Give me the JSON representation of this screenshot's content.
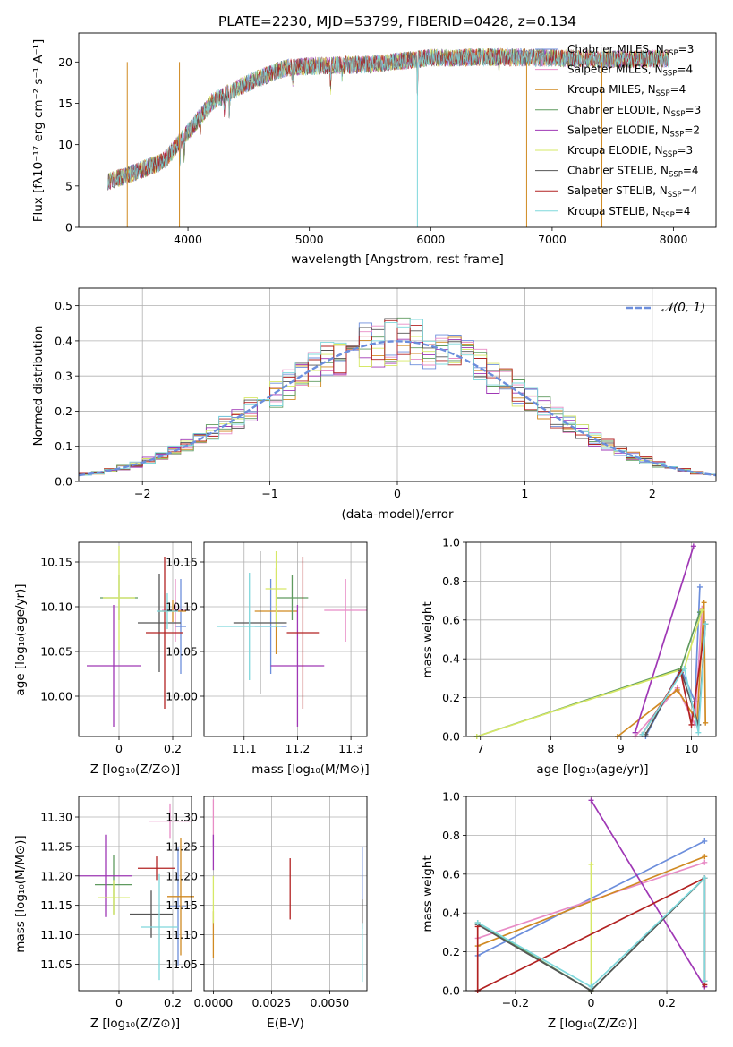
{
  "chart_data": [
    {
      "id": "spectrum",
      "type": "line",
      "title": "PLATE=2230, MJD=53799, FIBERID=0428, z=0.134",
      "xlabel": "wavelength [Angstrom, rest frame]",
      "ylabel": "Flux [fλ10⁻¹⁷ erg cm⁻² s⁻¹ A⁻¹]",
      "xlim": [
        3100,
        8350
      ],
      "ylim": [
        0,
        23.5
      ],
      "xticks": [
        4000,
        5000,
        6000,
        7000,
        8000
      ],
      "yticks": [
        0,
        5,
        10,
        15,
        20
      ],
      "x_range_data": [
        3340,
        7960
      ],
      "continuum": {
        "x": [
          3340,
          3500,
          3800,
          4000,
          4200,
          4500,
          4800,
          5000,
          5500,
          6000,
          6500,
          7000,
          7500,
          7960
        ],
        "y": [
          5.6,
          6.3,
          8.0,
          11.5,
          15.2,
          17.5,
          19.3,
          19.5,
          19.7,
          20.5,
          20.6,
          20.5,
          20.3,
          20.4
        ]
      },
      "legend_position": "right",
      "legend": [
        {
          "name": "Chabrier MILES, N",
          "sub": "SSP",
          "tail": "=3",
          "color": "#6c8edc"
        },
        {
          "name": "Salpeter MILES, N",
          "sub": "SSP",
          "tail": "=4",
          "color": "#e88cc6"
        },
        {
          "name": "Kroupa MILES, N",
          "sub": "SSP",
          "tail": "=4",
          "color": "#d08a22"
        },
        {
          "name": "Chabrier ELODIE, N",
          "sub": "SSP",
          "tail": "=3",
          "color": "#5f9a5f"
        },
        {
          "name": "Salpeter ELODIE, N",
          "sub": "SSP",
          "tail": "=2",
          "color": "#9f37b5"
        },
        {
          "name": "Kroupa ELODIE, N",
          "sub": "SSP",
          "tail": "=3",
          "color": "#d6e866"
        },
        {
          "name": "Chabrier STELIB, N",
          "sub": "SSP",
          "tail": "=4",
          "color": "#555555"
        },
        {
          "name": "Salpeter STELIB, N",
          "sub": "SSP",
          "tail": "=4",
          "color": "#b22222"
        },
        {
          "name": "Kroupa STELIB, N",
          "sub": "SSP",
          "tail": "=4",
          "color": "#7fd8dc"
        }
      ]
    },
    {
      "id": "residuals",
      "type": "line",
      "xlabel": "(data-model)/error",
      "ylabel": "Normed distribution",
      "xlim": [
        -2.5,
        2.5
      ],
      "ylim": [
        0,
        0.55
      ],
      "xticks": [
        -2,
        -1,
        0,
        1,
        2
      ],
      "yticks": [
        0.0,
        0.1,
        0.2,
        0.3,
        0.4,
        0.5
      ],
      "legend_label": "𝒩(0, 1)",
      "legend_position": "top-right",
      "gaussian": {
        "mean": 0,
        "sigma": 1,
        "color": "#6c8edc"
      },
      "bin_width": 0.1
    },
    {
      "id": "age_vs_Z",
      "type": "scatter",
      "xlabel": "Z [log₁₀(Z/Z⊙)]",
      "ylabel": "age  [log₁₀(age/yr)]",
      "xlim": [
        -0.15,
        0.27
      ],
      "ylim": [
        9.955,
        10.172
      ],
      "xticks": [
        0.0,
        0.2
      ],
      "yticks": [
        10.0,
        10.05,
        10.1,
        10.15
      ],
      "points": [
        {
          "x": 0.23,
          "y": 10.078,
          "xerr": 0.02,
          "yerr": 0.053,
          "color": "#6c8edc"
        },
        {
          "x": 0.21,
          "y": 10.096,
          "xerr": 0.05,
          "yerr": 0.035,
          "color": "#e88cc6"
        },
        {
          "x": 0.2,
          "y": 10.095,
          "xerr": 0.05,
          "yerr": 0.012,
          "color": "#d08a22"
        },
        {
          "x": 0.0,
          "y": 10.11,
          "xerr": 0.07,
          "yerr": 0.025,
          "color": "#5f9a5f"
        },
        {
          "x": -0.02,
          "y": 10.034,
          "xerr": 0.1,
          "yerr": 0.068,
          "color": "#9f37b5"
        },
        {
          "x": 0.0,
          "y": 10.11,
          "xerr": 0.06,
          "yerr": 0.058,
          "color": "#d6e866"
        },
        {
          "x": 0.15,
          "y": 10.082,
          "xerr": 0.08,
          "yerr": 0.055,
          "color": "#555555"
        },
        {
          "x": 0.17,
          "y": 10.071,
          "xerr": 0.07,
          "yerr": 0.085,
          "color": "#b22222"
        },
        {
          "x": 0.18,
          "y": 10.095,
          "xerr": 0.04,
          "yerr": 0.02,
          "color": "#7fd8dc"
        }
      ]
    },
    {
      "id": "age_vs_mass",
      "type": "scatter",
      "xlabel": "mass [log₁₀(M/M⊙)]",
      "ylabel": "",
      "xlim": [
        11.025,
        11.33
      ],
      "ylim": [
        9.955,
        10.172
      ],
      "xticks": [
        11.1,
        11.2,
        11.3
      ],
      "yticks": [
        10.0,
        10.05,
        10.1,
        10.15
      ],
      "points": [
        {
          "x": 11.15,
          "y": 10.078,
          "xerr": 0.03,
          "yerr": 0.053,
          "color": "#6c8edc"
        },
        {
          "x": 11.29,
          "y": 10.096,
          "xerr": 0.04,
          "yerr": 0.035,
          "color": "#e88cc6"
        },
        {
          "x": 11.16,
          "y": 10.095,
          "xerr": 0.04,
          "yerr": 0.048,
          "color": "#d08a22"
        },
        {
          "x": 11.19,
          "y": 10.11,
          "xerr": 0.03,
          "yerr": 0.025,
          "color": "#5f9a5f"
        },
        {
          "x": 11.2,
          "y": 10.034,
          "xerr": 0.05,
          "yerr": 0.068,
          "color": "#9f37b5"
        },
        {
          "x": 11.16,
          "y": 10.12,
          "xerr": 0.02,
          "yerr": 0.042,
          "color": "#d6e866"
        },
        {
          "x": 11.13,
          "y": 10.082,
          "xerr": 0.05,
          "yerr": 0.08,
          "color": "#555555"
        },
        {
          "x": 11.21,
          "y": 10.071,
          "xerr": 0.03,
          "yerr": 0.085,
          "color": "#b22222"
        },
        {
          "x": 11.11,
          "y": 10.078,
          "xerr": 0.06,
          "yerr": 0.06,
          "color": "#7fd8dc"
        }
      ]
    },
    {
      "id": "weight_vs_age",
      "type": "line",
      "xlabel": "age  [log₁₀(age/yr)]",
      "ylabel": "mass weight",
      "xlim": [
        6.8,
        10.35
      ],
      "ylim": [
        0,
        1
      ],
      "xticks": [
        7,
        8,
        9,
        10
      ],
      "yticks": [
        0.0,
        0.2,
        0.4,
        0.6,
        0.8,
        1.0
      ],
      "series": [
        {
          "color": "#6c8edc",
          "x": [
            9.35,
            9.85,
            10.05,
            10.12
          ],
          "y": [
            0.0,
            0.35,
            0.18,
            0.77
          ]
        },
        {
          "color": "#e88cc6",
          "x": [
            9.2,
            9.8,
            10.05,
            10.15
          ],
          "y": [
            0.0,
            0.25,
            0.06,
            0.66
          ]
        },
        {
          "color": "#d08a22",
          "x": [
            8.95,
            9.8,
            10.08,
            10.18,
            10.2
          ],
          "y": [
            0.0,
            0.24,
            0.08,
            0.69,
            0.07
          ]
        },
        {
          "color": "#5f9a5f",
          "x": [
            6.95,
            9.85,
            10.12
          ],
          "y": [
            0.0,
            0.35,
            0.64
          ]
        },
        {
          "color": "#9f37b5",
          "x": [
            9.2,
            10.03
          ],
          "y": [
            0.02,
            0.98
          ]
        },
        {
          "color": "#d6e866",
          "x": [
            6.95,
            9.9,
            10.15
          ],
          "y": [
            0.0,
            0.35,
            0.65
          ]
        },
        {
          "color": "#555555",
          "x": [
            9.35,
            9.85,
            10.1,
            10.2
          ],
          "y": [
            0.01,
            0.34,
            0.06,
            0.58
          ]
        },
        {
          "color": "#b22222",
          "x": [
            9.3,
            9.85,
            10.0,
            10.2
          ],
          "y": [
            0.01,
            0.33,
            0.06,
            0.58
          ]
        },
        {
          "color": "#7fd8dc",
          "x": [
            9.3,
            9.9,
            10.1,
            10.2
          ],
          "y": [
            0.01,
            0.35,
            0.02,
            0.58
          ]
        }
      ]
    },
    {
      "id": "mass_vs_Z",
      "type": "scatter",
      "xlabel": "Z [log₁₀(Z/Z⊙)]",
      "ylabel": "mass [log₁₀(M/M⊙)]",
      "xlim": [
        -0.15,
        0.27
      ],
      "ylim": [
        11.005,
        11.335
      ],
      "xticks": [
        0.0,
        0.2
      ],
      "yticks": [
        11.05,
        11.1,
        11.15,
        11.2,
        11.25,
        11.3
      ],
      "points": [
        {
          "x": 0.22,
          "y": 11.148,
          "xerr": 0.03,
          "yerr": 0.1,
          "color": "#6c8edc"
        },
        {
          "x": 0.19,
          "y": 11.293,
          "xerr": 0.08,
          "yerr": 0.03,
          "color": "#e88cc6"
        },
        {
          "x": 0.23,
          "y": 11.165,
          "xerr": 0.05,
          "yerr": 0.1,
          "color": "#d08a22"
        },
        {
          "x": -0.02,
          "y": 11.185,
          "xerr": 0.07,
          "yerr": 0.05,
          "color": "#5f9a5f"
        },
        {
          "x": -0.05,
          "y": 11.2,
          "xerr": 0.1,
          "yerr": 0.07,
          "color": "#9f37b5"
        },
        {
          "x": -0.02,
          "y": 11.163,
          "xerr": 0.06,
          "yerr": 0.03,
          "color": "#d6e866"
        },
        {
          "x": 0.12,
          "y": 11.135,
          "xerr": 0.08,
          "yerr": 0.04,
          "color": "#555555"
        },
        {
          "x": 0.14,
          "y": 11.213,
          "xerr": 0.07,
          "yerr": 0.02,
          "color": "#b22222"
        },
        {
          "x": 0.15,
          "y": 11.113,
          "xerr": 0.07,
          "yerr": 0.09,
          "color": "#7fd8dc"
        }
      ]
    },
    {
      "id": "mass_vs_ebv",
      "type": "scatter",
      "xlabel": "E(B-V)",
      "ylabel": "",
      "xlim": [
        -0.0004,
        0.0066
      ],
      "ylim": [
        11.005,
        11.335
      ],
      "xticks": [
        0.0,
        0.0025,
        0.005
      ],
      "xticklabels": [
        "0.0000",
        "0.0025",
        "0.0050"
      ],
      "yticks": [
        11.05,
        11.1,
        11.15,
        11.2,
        11.25,
        11.3
      ],
      "points": [
        {
          "x": 0.0064,
          "y": 11.2,
          "yerr": 0.05,
          "color": "#6c8edc"
        },
        {
          "x": 0.0,
          "y": 11.29,
          "yerr": 0.04,
          "color": "#e88cc6"
        },
        {
          "x": 0.0,
          "y": 11.1,
          "yerr": 0.04,
          "color": "#d08a22"
        },
        {
          "x": 0.0,
          "y": 11.24,
          "yerr": 0.03,
          "color": "#9f37b5"
        },
        {
          "x": 0.0,
          "y": 11.16,
          "yerr": 0.04,
          "color": "#d6e866"
        },
        {
          "x": 0.0064,
          "y": 11.135,
          "yerr": 0.025,
          "color": "#555555"
        },
        {
          "x": 0.0033,
          "y": 11.178,
          "yerr": 0.052,
          "color": "#b22222"
        },
        {
          "x": 0.0064,
          "y": 11.07,
          "yerr": 0.05,
          "color": "#7fd8dc"
        }
      ]
    },
    {
      "id": "weight_vs_Z",
      "type": "line",
      "xlabel": "Z [log₁₀(Z/Z⊙)]",
      "ylabel": "mass weight",
      "xlim": [
        -0.33,
        0.33
      ],
      "ylim": [
        0,
        1
      ],
      "xticks": [
        -0.2,
        0.0,
        0.2
      ],
      "yticks": [
        0.0,
        0.2,
        0.4,
        0.6,
        0.8,
        1.0
      ],
      "series": [
        {
          "color": "#6c8edc",
          "x": [
            -0.3,
            0.3
          ],
          "y": [
            0.18,
            0.77
          ]
        },
        {
          "color": "#e88cc6",
          "x": [
            -0.3,
            0.3
          ],
          "y": [
            0.27,
            0.66
          ]
        },
        {
          "color": "#d08a22",
          "x": [
            -0.3,
            0.3
          ],
          "y": [
            0.23,
            0.69
          ]
        },
        {
          "color": "#5f9a5f",
          "x": [
            -0.3,
            0.0,
            0.3
          ],
          "y": [
            0.35,
            0.0,
            0.58
          ]
        },
        {
          "color": "#9f37b5",
          "x": [
            0.0,
            0.3
          ],
          "y": [
            0.98,
            0.02
          ]
        },
        {
          "color": "#d6e866",
          "x": [
            0.0,
            0.0
          ],
          "y": [
            0.65,
            0.0
          ]
        },
        {
          "color": "#555555",
          "x": [
            -0.3,
            0.0,
            0.3,
            0.3
          ],
          "y": [
            0.34,
            0.0,
            0.58,
            0.05
          ]
        },
        {
          "color": "#b22222",
          "x": [
            -0.3,
            -0.3,
            0.3,
            0.3
          ],
          "y": [
            0.33,
            0.0,
            0.58,
            0.03
          ]
        },
        {
          "color": "#7fd8dc",
          "x": [
            -0.3,
            0.0,
            0.3,
            0.3
          ],
          "y": [
            0.35,
            0.02,
            0.58,
            0.05
          ]
        }
      ]
    }
  ]
}
